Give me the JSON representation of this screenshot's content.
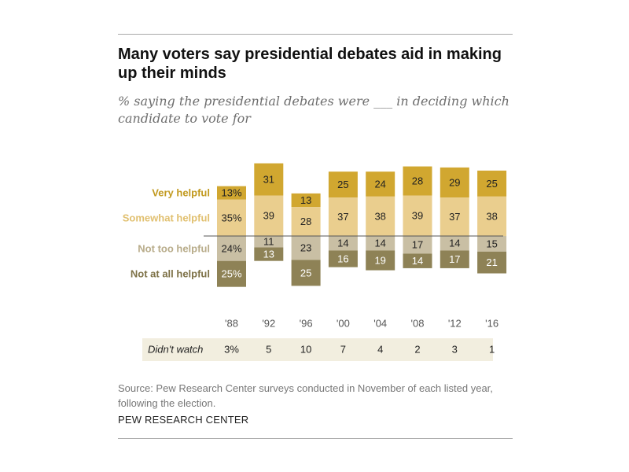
{
  "header": {
    "title": "Many voters say presidential debates aid in making up their minds",
    "subtitle": "% saying the presidential debates were ___  in deciding which candidate to vote for"
  },
  "footer": {
    "source": "Source: Pew Research Center surveys conducted in November of each listed year, following the election.",
    "brand": "PEW RESEARCH CENTER"
  },
  "colors": {
    "very_helpful": "#D1A730",
    "somewhat_helpful": "#EACE8E",
    "not_too_helpful": "#C9BFA4",
    "not_at_all_helpful": "#8E8256",
    "didnt_watch_row": "#F2EEDF",
    "rule": "#a8a8a8"
  },
  "chart_data": {
    "type": "bar",
    "stacking": "diverging",
    "categories": [
      "'88",
      "'92",
      "'96",
      "'00",
      "'04",
      "'08",
      "'12",
      "'16"
    ],
    "series": [
      {
        "name": "Very helpful",
        "display": [
          "13%",
          "31",
          "13",
          "25",
          "24",
          "28",
          "29",
          "25"
        ],
        "values": [
          13,
          31,
          13,
          25,
          24,
          28,
          29,
          25
        ]
      },
      {
        "name": "Somewhat helpful",
        "display": [
          "35%",
          "39",
          "28",
          "37",
          "38",
          "39",
          "37",
          "38"
        ],
        "values": [
          35,
          39,
          28,
          37,
          38,
          39,
          37,
          38
        ]
      },
      {
        "name": "Not too helpful",
        "display": [
          "24%",
          "11",
          "23",
          "14",
          "14",
          "17",
          "14",
          "15"
        ],
        "values": [
          24,
          11,
          23,
          14,
          14,
          17,
          14,
          15
        ]
      },
      {
        "name": "Not at all helpful",
        "display": [
          "25%",
          "13",
          "25",
          "16",
          "19",
          "14",
          "17",
          "21"
        ],
        "values": [
          25,
          13,
          25,
          16,
          19,
          14,
          17,
          21
        ]
      }
    ],
    "didnt_watch": {
      "label": "Didn't watch",
      "display": [
        "3%",
        "5",
        "10",
        "7",
        "4",
        "2",
        "3",
        "1"
      ],
      "values": [
        3,
        5,
        10,
        7,
        4,
        2,
        3,
        1
      ]
    }
  }
}
